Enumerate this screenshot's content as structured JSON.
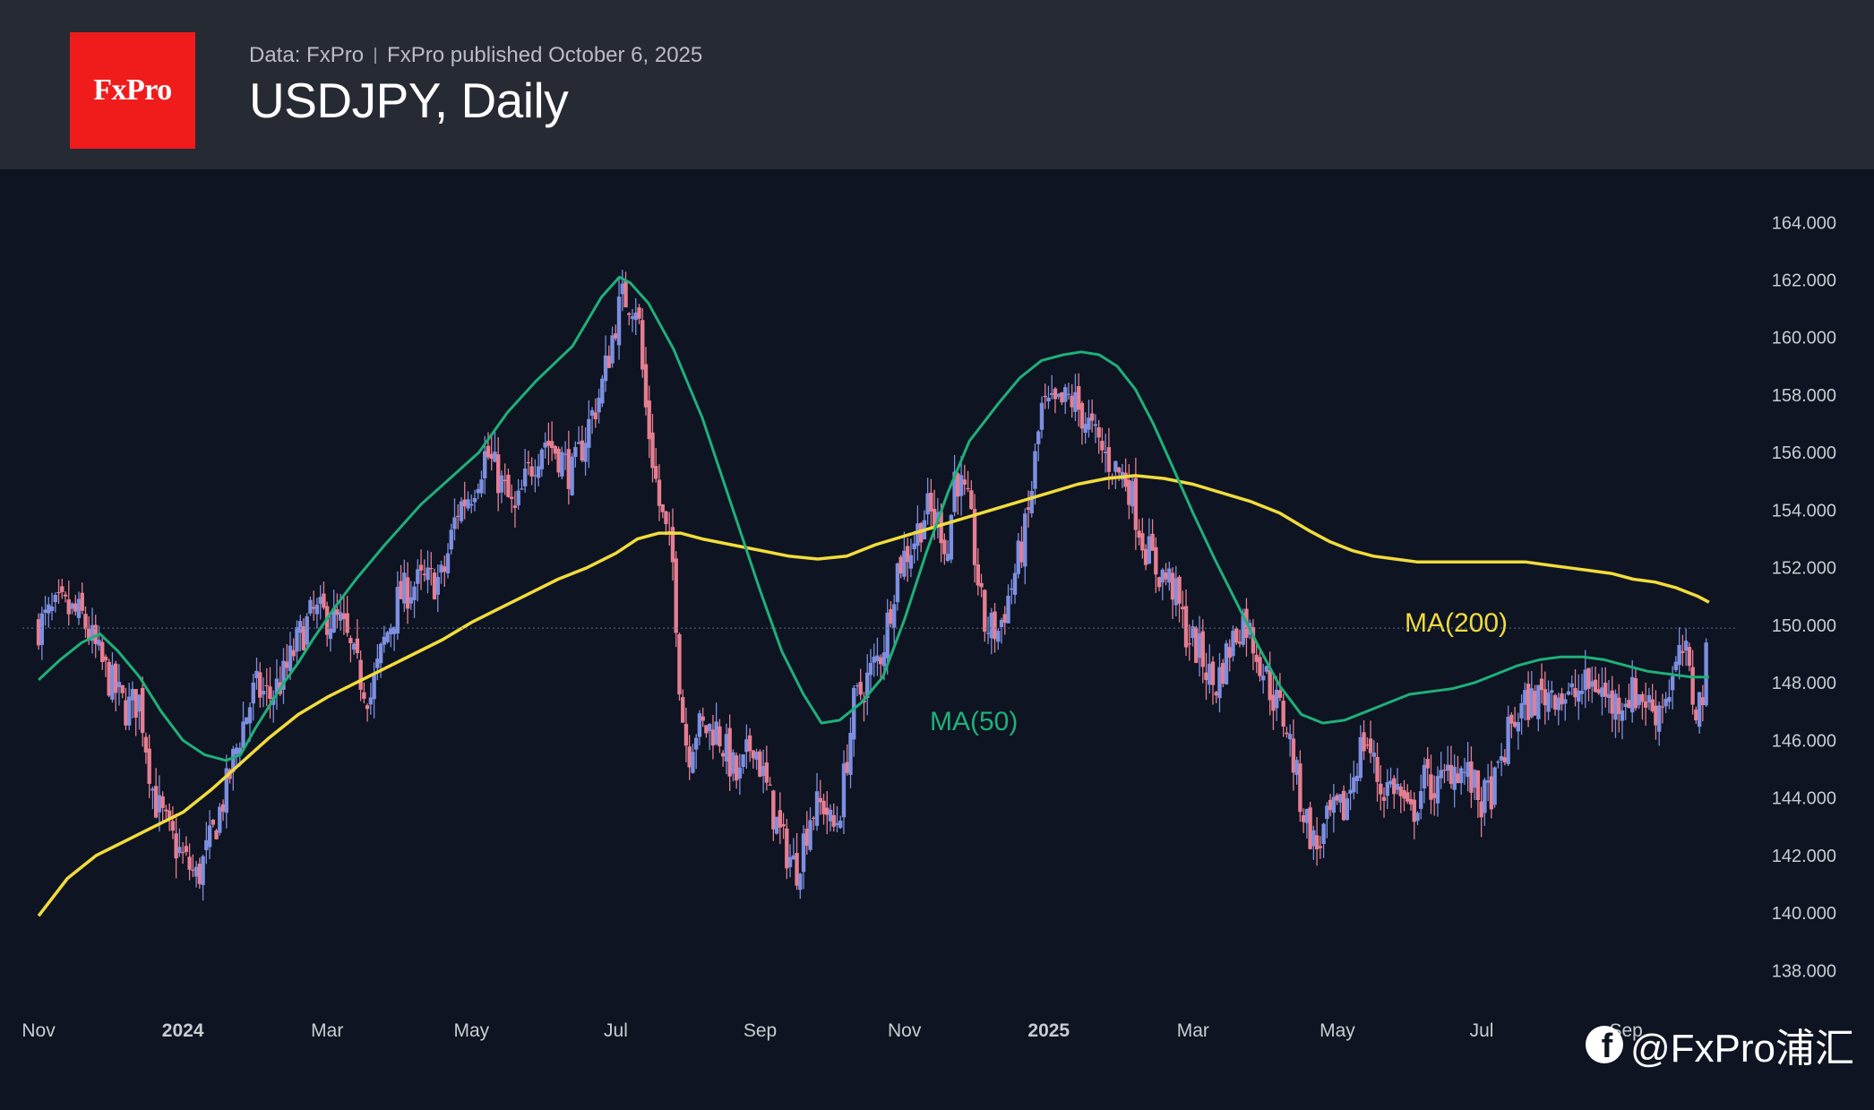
{
  "header": {
    "logo": "FxPro",
    "source": "Data: FxPro",
    "published": "FxPro published October 6, 2025",
    "title": "USDJPY, Daily"
  },
  "watermark": {
    "icon": "facebook-icon",
    "text": "@FxPro浦汇"
  },
  "colors": {
    "background": "#0e1421",
    "header_bg": "#262a33",
    "logo_bg": "#f01c1c",
    "candle_up": "#7c8fe0",
    "candle_down": "#e67e92",
    "ma50": "#1fb07a",
    "ma200": "#f2dc3c",
    "axis_text": "#c9ccd3",
    "current_line": "#5a6c8a"
  },
  "chart_data": {
    "type": "candlestick",
    "title": "USDJPY, Daily",
    "ylim": [
      137.2,
      164.6
    ],
    "y_ticks": [
      "164.000",
      "162.000",
      "160.000",
      "158.000",
      "156.000",
      "154.000",
      "152.000",
      "150.000",
      "148.000",
      "146.000",
      "144.000",
      "142.000",
      "140.000",
      "138.000"
    ],
    "x_range_months": [
      -0.1,
      23.55
    ],
    "x_ticks": [
      {
        "label": "Nov",
        "month": 0,
        "bold": false
      },
      {
        "label": "2024",
        "month": 2,
        "bold": true
      },
      {
        "label": "Mar",
        "month": 4,
        "bold": false
      },
      {
        "label": "May",
        "month": 6,
        "bold": false
      },
      {
        "label": "Jul",
        "month": 8,
        "bold": false
      },
      {
        "label": "Sep",
        "month": 10,
        "bold": false
      },
      {
        "label": "Nov",
        "month": 12,
        "bold": false
      },
      {
        "label": "2025",
        "month": 14,
        "bold": true
      },
      {
        "label": "Mar",
        "month": 16,
        "bold": false
      },
      {
        "label": "May",
        "month": 18,
        "bold": false
      },
      {
        "label": "Jul",
        "month": 20,
        "bold": false
      },
      {
        "label": "Sep",
        "month": 22,
        "bold": false
      }
    ],
    "current_price": 149.9,
    "close_path": [
      [
        0.0,
        150.0
      ],
      [
        0.3,
        150.6
      ],
      [
        0.6,
        150.3
      ],
      [
        0.9,
        148.5
      ],
      [
        1.2,
        147.1
      ],
      [
        1.4,
        147.4
      ],
      [
        1.6,
        144.0
      ],
      [
        1.8,
        142.8
      ],
      [
        2.0,
        141.9
      ],
      [
        2.2,
        141.2
      ],
      [
        2.4,
        142.6
      ],
      [
        2.6,
        144.3
      ],
      [
        2.8,
        146.3
      ],
      [
        3.0,
        147.8
      ],
      [
        3.2,
        147.5
      ],
      [
        3.4,
        148.2
      ],
      [
        3.6,
        149.5
      ],
      [
        3.8,
        150.4
      ],
      [
        4.0,
        150.3
      ],
      [
        4.2,
        150.0
      ],
      [
        4.4,
        148.5
      ],
      [
        4.6,
        147.5
      ],
      [
        4.8,
        149.5
      ],
      [
        5.0,
        151.0
      ],
      [
        5.2,
        151.4
      ],
      [
        5.4,
        151.5
      ],
      [
        5.6,
        151.6
      ],
      [
        5.8,
        154.0
      ],
      [
        6.0,
        154.7
      ],
      [
        6.2,
        156.0
      ],
      [
        6.4,
        155.0
      ],
      [
        6.6,
        153.8
      ],
      [
        6.8,
        155.4
      ],
      [
        7.0,
        156.5
      ],
      [
        7.2,
        156.0
      ],
      [
        7.4,
        155.2
      ],
      [
        7.6,
        156.8
      ],
      [
        7.8,
        158.2
      ],
      [
        8.0,
        160.6
      ],
      [
        8.1,
        161.4
      ],
      [
        8.3,
        161.2
      ],
      [
        8.4,
        157.8
      ],
      [
        8.6,
        154.2
      ],
      [
        8.8,
        152.0
      ],
      [
        8.9,
        147.3
      ],
      [
        9.0,
        145.5
      ],
      [
        9.1,
        146.4
      ],
      [
        9.4,
        146.4
      ],
      [
        9.7,
        144.5
      ],
      [
        9.9,
        146.1
      ],
      [
        10.1,
        144.2
      ],
      [
        10.3,
        142.5
      ],
      [
        10.5,
        141.5
      ],
      [
        10.7,
        143.5
      ],
      [
        10.9,
        143.8
      ],
      [
        11.0,
        142.8
      ],
      [
        11.1,
        143.5
      ],
      [
        11.3,
        147.2
      ],
      [
        11.5,
        148.2
      ],
      [
        11.7,
        149.2
      ],
      [
        11.9,
        152.0
      ],
      [
        12.1,
        152.8
      ],
      [
        12.3,
        154.0
      ],
      [
        12.5,
        153.5
      ],
      [
        12.6,
        152.5
      ],
      [
        12.7,
        155.4
      ],
      [
        12.9,
        153.9
      ],
      [
        13.1,
        150.0
      ],
      [
        13.3,
        149.8
      ],
      [
        13.5,
        151.5
      ],
      [
        13.7,
        153.5
      ],
      [
        13.9,
        157.5
      ],
      [
        14.1,
        157.5
      ],
      [
        14.3,
        157.9
      ],
      [
        14.5,
        157.2
      ],
      [
        14.7,
        156.2
      ],
      [
        14.9,
        155.5
      ],
      [
        15.1,
        155.0
      ],
      [
        15.3,
        153.0
      ],
      [
        15.5,
        151.9
      ],
      [
        15.7,
        151.5
      ],
      [
        15.9,
        149.8
      ],
      [
        16.1,
        149.0
      ],
      [
        16.3,
        147.8
      ],
      [
        16.5,
        149.2
      ],
      [
        16.7,
        150.3
      ],
      [
        16.9,
        149.0
      ],
      [
        17.1,
        147.6
      ],
      [
        17.3,
        146.5
      ],
      [
        17.5,
        143.8
      ],
      [
        17.7,
        142.2
      ],
      [
        17.9,
        143.3
      ],
      [
        18.1,
        143.6
      ],
      [
        18.3,
        145.6
      ],
      [
        18.4,
        146.1
      ],
      [
        18.6,
        144.3
      ],
      [
        18.8,
        144.5
      ],
      [
        19.0,
        143.2
      ],
      [
        19.2,
        144.6
      ],
      [
        19.4,
        144.3
      ],
      [
        19.6,
        145.2
      ],
      [
        19.8,
        144.8
      ],
      [
        20.0,
        143.8
      ],
      [
        20.2,
        144.5
      ],
      [
        20.4,
        146.5
      ],
      [
        20.6,
        147.2
      ],
      [
        20.8,
        147.5
      ],
      [
        21.0,
        147.8
      ],
      [
        21.2,
        147.4
      ],
      [
        21.4,
        147.8
      ],
      [
        21.6,
        148.0
      ],
      [
        21.8,
        147.2
      ],
      [
        22.0,
        147.6
      ],
      [
        22.2,
        147.6
      ],
      [
        22.4,
        147.0
      ],
      [
        22.6,
        147.8
      ],
      [
        22.8,
        149.2
      ],
      [
        22.95,
        147.2
      ],
      [
        23.05,
        147.4
      ],
      [
        23.15,
        149.6
      ]
    ],
    "series": [
      {
        "name": "MA(50)",
        "label": "MA(50)",
        "values": [
          [
            0.0,
            148.1
          ],
          [
            0.3,
            148.8
          ],
          [
            0.6,
            149.4
          ],
          [
            0.85,
            149.7
          ],
          [
            1.1,
            149.1
          ],
          [
            1.4,
            148.2
          ],
          [
            1.7,
            147.0
          ],
          [
            2.0,
            146.0
          ],
          [
            2.3,
            145.5
          ],
          [
            2.6,
            145.3
          ],
          [
            2.8,
            145.5
          ],
          [
            3.0,
            146.4
          ],
          [
            3.2,
            147.2
          ],
          [
            3.4,
            148.0
          ],
          [
            3.6,
            148.7
          ],
          [
            3.8,
            149.5
          ],
          [
            4.1,
            150.6
          ],
          [
            4.4,
            151.6
          ],
          [
            4.8,
            152.8
          ],
          [
            5.3,
            154.2
          ],
          [
            5.7,
            155.1
          ],
          [
            6.1,
            156.0
          ],
          [
            6.5,
            157.4
          ],
          [
            6.9,
            158.5
          ],
          [
            7.4,
            159.7
          ],
          [
            7.8,
            161.4
          ],
          [
            8.05,
            162.1
          ],
          [
            8.2,
            161.9
          ],
          [
            8.45,
            161.2
          ],
          [
            8.8,
            159.6
          ],
          [
            9.2,
            157.2
          ],
          [
            9.6,
            154.2
          ],
          [
            10.0,
            151.2
          ],
          [
            10.3,
            149.1
          ],
          [
            10.6,
            147.6
          ],
          [
            10.85,
            146.6
          ],
          [
            11.1,
            146.7
          ],
          [
            11.4,
            147.3
          ],
          [
            11.7,
            148.2
          ],
          [
            12.0,
            150.2
          ],
          [
            12.3,
            152.5
          ],
          [
            12.6,
            154.6
          ],
          [
            12.9,
            156.4
          ],
          [
            13.3,
            157.7
          ],
          [
            13.6,
            158.6
          ],
          [
            13.9,
            159.2
          ],
          [
            14.2,
            159.4
          ],
          [
            14.45,
            159.5
          ],
          [
            14.7,
            159.4
          ],
          [
            14.95,
            159.0
          ],
          [
            15.2,
            158.2
          ],
          [
            15.45,
            157.0
          ],
          [
            15.7,
            155.6
          ],
          [
            16.0,
            153.9
          ],
          [
            16.3,
            152.3
          ],
          [
            16.6,
            150.8
          ],
          [
            16.9,
            149.3
          ],
          [
            17.2,
            147.9
          ],
          [
            17.5,
            146.9
          ],
          [
            17.8,
            146.6
          ],
          [
            18.1,
            146.7
          ],
          [
            18.4,
            147.0
          ],
          [
            18.7,
            147.3
          ],
          [
            19.0,
            147.6
          ],
          [
            19.3,
            147.7
          ],
          [
            19.6,
            147.8
          ],
          [
            19.9,
            148.0
          ],
          [
            20.2,
            148.3
          ],
          [
            20.5,
            148.6
          ],
          [
            20.8,
            148.8
          ],
          [
            21.1,
            148.9
          ],
          [
            21.4,
            148.9
          ],
          [
            21.7,
            148.8
          ],
          [
            22.0,
            148.6
          ],
          [
            22.3,
            148.4
          ],
          [
            22.6,
            148.3
          ],
          [
            22.9,
            148.2
          ],
          [
            23.15,
            148.2
          ]
        ]
      },
      {
        "name": "MA(200)",
        "label": "MA(200)",
        "values": [
          [
            0.0,
            139.9
          ],
          [
            0.4,
            141.2
          ],
          [
            0.8,
            142.0
          ],
          [
            1.2,
            142.5
          ],
          [
            1.6,
            143.0
          ],
          [
            2.0,
            143.5
          ],
          [
            2.4,
            144.3
          ],
          [
            2.8,
            145.2
          ],
          [
            3.2,
            146.1
          ],
          [
            3.6,
            146.9
          ],
          [
            4.0,
            147.5
          ],
          [
            4.4,
            148.0
          ],
          [
            4.8,
            148.5
          ],
          [
            5.2,
            149.0
          ],
          [
            5.6,
            149.5
          ],
          [
            6.0,
            150.1
          ],
          [
            6.4,
            150.6
          ],
          [
            6.8,
            151.1
          ],
          [
            7.2,
            151.6
          ],
          [
            7.6,
            152.0
          ],
          [
            8.0,
            152.5
          ],
          [
            8.3,
            153.0
          ],
          [
            8.6,
            153.2
          ],
          [
            8.9,
            153.2
          ],
          [
            9.2,
            153.0
          ],
          [
            9.6,
            152.8
          ],
          [
            10.0,
            152.6
          ],
          [
            10.4,
            152.4
          ],
          [
            10.8,
            152.3
          ],
          [
            11.2,
            152.4
          ],
          [
            11.6,
            152.8
          ],
          [
            12.0,
            153.1
          ],
          [
            12.4,
            153.4
          ],
          [
            12.8,
            153.7
          ],
          [
            13.2,
            154.0
          ],
          [
            13.6,
            154.3
          ],
          [
            14.0,
            154.6
          ],
          [
            14.4,
            154.9
          ],
          [
            14.8,
            155.1
          ],
          [
            15.2,
            155.2
          ],
          [
            15.6,
            155.1
          ],
          [
            16.0,
            154.9
          ],
          [
            16.4,
            154.6
          ],
          [
            16.8,
            154.3
          ],
          [
            17.2,
            153.9
          ],
          [
            17.6,
            153.3
          ],
          [
            17.9,
            152.9
          ],
          [
            18.2,
            152.6
          ],
          [
            18.5,
            152.4
          ],
          [
            18.8,
            152.3
          ],
          [
            19.1,
            152.2
          ],
          [
            19.4,
            152.2
          ],
          [
            19.7,
            152.2
          ],
          [
            20.0,
            152.2
          ],
          [
            20.3,
            152.2
          ],
          [
            20.6,
            152.2
          ],
          [
            20.9,
            152.1
          ],
          [
            21.2,
            152.0
          ],
          [
            21.5,
            151.9
          ],
          [
            21.8,
            151.8
          ],
          [
            22.1,
            151.6
          ],
          [
            22.4,
            151.5
          ],
          [
            22.7,
            151.3
          ],
          [
            23.0,
            151.0
          ],
          [
            23.15,
            150.8
          ]
        ]
      }
    ]
  }
}
